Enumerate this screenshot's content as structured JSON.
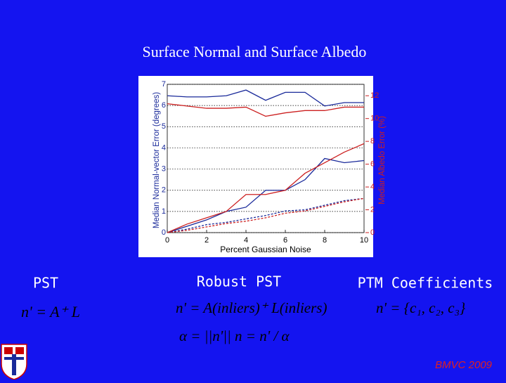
{
  "title": "Surface Normal and Surface Albedo",
  "chart_data": {
    "type": "line",
    "xlabel": "Percent Gaussian Noise",
    "ylabel": "Median Normal-vector Error (degrees)",
    "y2label": "Median Albedo Error (%)",
    "x": [
      0,
      1,
      2,
      3,
      4,
      5,
      6,
      7,
      8,
      9,
      10
    ],
    "xlim": [
      0,
      10
    ],
    "xticks": [
      0,
      2,
      4,
      6,
      8,
      10
    ],
    "ylim": [
      0,
      7
    ],
    "yticks": [
      0,
      1,
      2,
      3,
      4,
      5,
      6,
      7
    ],
    "y2lim": [
      0,
      13
    ],
    "y2ticks": [
      0,
      2,
      4,
      6,
      8,
      10,
      12
    ],
    "grid": true,
    "series": [
      {
        "color": "#1a2a9a",
        "style": "solid",
        "values": [
          0,
          0.3,
          0.6,
          1.0,
          1.2,
          2.0,
          2.0,
          2.5,
          3.5,
          3.3,
          3.4
        ]
      },
      {
        "color": "#cc2020",
        "style": "solid",
        "values": [
          0,
          0.4,
          0.7,
          1.0,
          1.8,
          1.8,
          2.0,
          2.8,
          3.3,
          3.8,
          4.2
        ]
      },
      {
        "color": "#1a2a9a",
        "style": "solid",
        "axis": "y2",
        "values": [
          12.0,
          11.9,
          11.9,
          12.0,
          12.5,
          11.6,
          12.3,
          12.3,
          11.1,
          11.4,
          11.4
        ]
      },
      {
        "color": "#cc2020",
        "style": "solid",
        "axis": "y2",
        "values": [
          11.3,
          11.1,
          10.9,
          10.9,
          11.0,
          10.2,
          10.5,
          10.7,
          10.7,
          11.0,
          11.0
        ]
      },
      {
        "color": "#1a2a9a",
        "style": "dashed",
        "axis": "y2",
        "values": [
          0,
          0.3,
          0.7,
          0.9,
          1.2,
          1.5,
          1.9,
          2.0,
          2.4,
          2.8,
          3.0
        ]
      },
      {
        "color": "#cc2020",
        "style": "dashed",
        "axis": "y2",
        "values": [
          0,
          0.2,
          0.5,
          0.8,
          1.0,
          1.3,
          1.7,
          1.9,
          2.3,
          2.7,
          3.0
        ]
      }
    ]
  },
  "columns": [
    {
      "label": "PST",
      "formulas": [
        "n' = A⁺ L"
      ]
    },
    {
      "label": "Robust PST",
      "formulas": [
        "n' = A(inliers)⁺ L(inliers)",
        "α = ||n'||    n = n' / α"
      ]
    },
    {
      "label": "PTM Coefficients",
      "formulas": [
        "n' = {c₁, c₂, c₃}"
      ]
    }
  ],
  "footer": "BMVC 2009"
}
